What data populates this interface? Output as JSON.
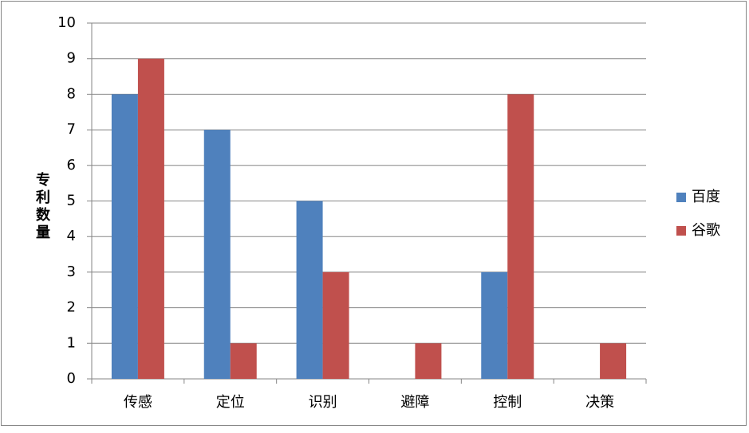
{
  "chart_data": {
    "type": "bar",
    "y_label": "专利数量",
    "categories": [
      "传感",
      "定位",
      "识别",
      "避障",
      "控制",
      "决策"
    ],
    "series": [
      {
        "name": "百度",
        "color": "#4f81bd",
        "values": [
          8,
          7,
          5,
          0,
          3,
          0
        ]
      },
      {
        "name": "谷歌",
        "color": "#c0504d",
        "values": [
          9,
          1,
          3,
          1,
          8,
          1
        ]
      }
    ],
    "ylim": [
      0,
      10
    ],
    "yticks": [
      0,
      1,
      2,
      3,
      4,
      5,
      6,
      7,
      8,
      9,
      10
    ],
    "grid": true,
    "legend": "right"
  }
}
